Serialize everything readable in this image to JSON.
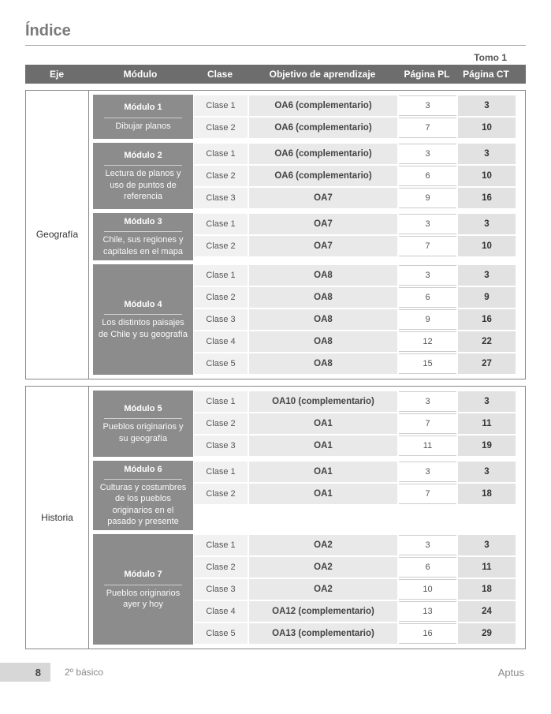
{
  "title": "Índice",
  "tomo_label": "Tomo 1",
  "header": {
    "eje": "Eje",
    "modulo": "Módulo",
    "clase": "Clase",
    "objetivo": "Objetivo de aprendizaje",
    "pagina_pl": "Página PL",
    "pagina_ct": "Página CT"
  },
  "colors": {
    "header_bg": "#6d6d6d",
    "header_fg": "#ffffff",
    "module_bg": "#8c8c8c",
    "module_fg": "#ffffff",
    "clase_bg": "#f1f1f1",
    "obj_bg": "#e9e9e9",
    "pl_bg": "#ffffff",
    "ct_bg": "#e2e2e2",
    "title_color": "#7a7a7a",
    "border_color": "#888888",
    "footer_bg": "#d7d7d7",
    "muted_text": "#888888"
  },
  "ejes": [
    {
      "name": "Geografía",
      "modules": [
        {
          "title": "Módulo 1",
          "desc": "Dibujar planos",
          "clases": [
            {
              "clase": "Clase 1",
              "obj": "OA6 (complementario)",
              "pl": "3",
              "ct": "3"
            },
            {
              "clase": "Clase 2",
              "obj": "OA6 (complementario)",
              "pl": "7",
              "ct": "10"
            }
          ]
        },
        {
          "title": "Módulo 2",
          "desc": "Lectura de planos y uso de puntos de referencia",
          "clases": [
            {
              "clase": "Clase 1",
              "obj": "OA6 (complementario)",
              "pl": "3",
              "ct": "3"
            },
            {
              "clase": "Clase 2",
              "obj": "OA6 (complementario)",
              "pl": "6",
              "ct": "10"
            },
            {
              "clase": "Clase 3",
              "obj": "OA7",
              "pl": "9",
              "ct": "16"
            }
          ]
        },
        {
          "title": "Módulo 3",
          "desc": "Chile, sus regiones y capitales en el mapa",
          "clases": [
            {
              "clase": "Clase 1",
              "obj": "OA7",
              "pl": "3",
              "ct": "3"
            },
            {
              "clase": "Clase 2",
              "obj": "OA7",
              "pl": "7",
              "ct": "10"
            }
          ]
        },
        {
          "title": "Módulo 4",
          "desc": "Los distintos paisajes de Chile y su geografía",
          "clases": [
            {
              "clase": "Clase 1",
              "obj": "OA8",
              "pl": "3",
              "ct": "3"
            },
            {
              "clase": "Clase 2",
              "obj": "OA8",
              "pl": "6",
              "ct": "9"
            },
            {
              "clase": "Clase 3",
              "obj": "OA8",
              "pl": "9",
              "ct": "16"
            },
            {
              "clase": "Clase 4",
              "obj": "OA8",
              "pl": "12",
              "ct": "22"
            },
            {
              "clase": "Clase 5",
              "obj": "OA8",
              "pl": "15",
              "ct": "27"
            }
          ]
        }
      ]
    },
    {
      "name": "Historia",
      "modules": [
        {
          "title": "Módulo 5",
          "desc": "Pueblos originarios y su geografía",
          "clases": [
            {
              "clase": "Clase 1",
              "obj": "OA10 (complementario)",
              "pl": "3",
              "ct": "3"
            },
            {
              "clase": "Clase 2",
              "obj": "OA1",
              "pl": "7",
              "ct": "11"
            },
            {
              "clase": "Clase 3",
              "obj": "OA1",
              "pl": "11",
              "ct": "19"
            }
          ]
        },
        {
          "title": "Módulo 6",
          "desc": "Culturas y costumbres de los pueblos originarios en el pasado y presente",
          "clases": [
            {
              "clase": "Clase 1",
              "obj": "OA1",
              "pl": "3",
              "ct": "3"
            },
            {
              "clase": "Clase 2",
              "obj": "OA1",
              "pl": "7",
              "ct": "18"
            }
          ]
        },
        {
          "title": "Módulo 7",
          "desc": "Pueblos originarios ayer y hoy",
          "clases": [
            {
              "clase": "Clase 1",
              "obj": "OA2",
              "pl": "3",
              "ct": "3"
            },
            {
              "clase": "Clase 2",
              "obj": "OA2",
              "pl": "6",
              "ct": "11"
            },
            {
              "clase": "Clase 3",
              "obj": "OA2",
              "pl": "10",
              "ct": "18"
            },
            {
              "clase": "Clase 4",
              "obj": "OA12 (complementario)",
              "pl": "13",
              "ct": "24"
            },
            {
              "clase": "Clase 5",
              "obj": "OA13 (complementario)",
              "pl": "16",
              "ct": "29"
            }
          ]
        }
      ]
    }
  ],
  "footer": {
    "page_number": "8",
    "grade": "2º básico",
    "brand": "Aptus"
  }
}
